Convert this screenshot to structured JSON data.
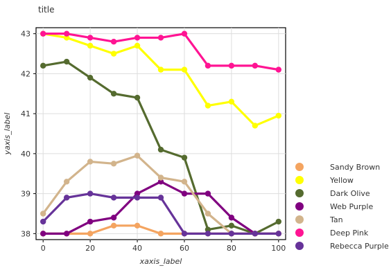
{
  "chart_data": {
    "type": "line",
    "title": "title",
    "xlabel": "xaxis_label",
    "ylabel": "yaxis_label",
    "xlim": [
      -3,
      103
    ],
    "ylim": [
      37.85,
      43.15
    ],
    "xticks": [
      0,
      20,
      40,
      60,
      80,
      100
    ],
    "yticks": [
      38,
      39,
      40,
      41,
      42,
      43
    ],
    "grid": true,
    "legend_position": "right",
    "x": [
      0,
      10,
      20,
      30,
      40,
      50,
      60,
      70,
      80,
      90,
      100
    ],
    "series": [
      {
        "name": "Sandy Brown",
        "color": "#f4a460",
        "values": [
          38.0,
          38.0,
          38.0,
          38.2,
          38.2,
          38.0,
          38.0,
          38.0,
          38.0,
          38.0,
          38.0
        ]
      },
      {
        "name": "Yellow",
        "color": "#ffff00",
        "values": [
          43.0,
          42.9,
          42.7,
          42.5,
          42.7,
          42.1,
          42.1,
          41.2,
          41.3,
          40.7,
          40.95
        ]
      },
      {
        "name": "Dark Olive",
        "color": "#556b2f",
        "values": [
          42.2,
          42.3,
          41.9,
          41.5,
          41.4,
          40.1,
          39.9,
          38.1,
          38.2,
          38.0,
          38.3
        ]
      },
      {
        "name": "Web Purple",
        "color": "#800080",
        "values": [
          38.0,
          38.0,
          38.3,
          38.4,
          39.0,
          39.3,
          39.0,
          39.0,
          38.4,
          38.0,
          38.0
        ]
      },
      {
        "name": "Tan",
        "color": "#d2b48c",
        "values": [
          38.5,
          39.3,
          39.8,
          39.75,
          39.95,
          39.4,
          39.3,
          38.5,
          38.0,
          38.0,
          38.0
        ]
      },
      {
        "name": "Deep Pink",
        "color": "#ff1493",
        "values": [
          43.0,
          43.0,
          42.9,
          42.8,
          42.9,
          42.9,
          43.0,
          42.2,
          42.2,
          42.2,
          42.1
        ]
      },
      {
        "name": "Rebecca Purple",
        "color": "#663399",
        "values": [
          38.3,
          38.9,
          39.0,
          38.9,
          38.9,
          38.9,
          38.0,
          38.0,
          38.0,
          38.0,
          38.0
        ]
      }
    ]
  }
}
